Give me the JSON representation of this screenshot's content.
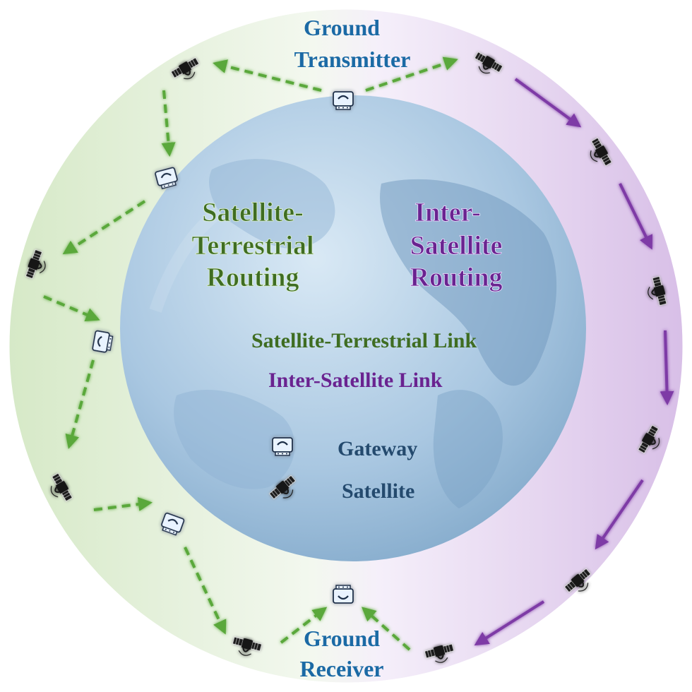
{
  "labels": {
    "ground_transmitter": [
      "Ground",
      "Transmitter"
    ],
    "ground_receiver": [
      "Ground",
      "Receiver"
    ],
    "satellite_terrestrial_routing": [
      "Satellite-",
      "Terrestrial",
      "Routing"
    ],
    "inter_satellite_routing": [
      "Inter-",
      "Satellite",
      "Routing"
    ]
  },
  "legend": {
    "satellite_terrestrial_link": "Satellite-Terrestrial Link",
    "inter_satellite_link": "Inter-Satellite Link",
    "gateway": "Gateway",
    "satellite": "Satellite"
  },
  "colors": {
    "green_text": "#3f6d22",
    "green_link": "#5aa83a",
    "green_glow": "#b7ef86",
    "purple_text": "#6a2390",
    "purple_link": "#7e3aa6",
    "purple_glow": "#d5a7ff",
    "blue_text": "#1b6aa5",
    "dark_blue_text": "#244a6e"
  },
  "icons": {
    "gateway": "gateway-icon",
    "satellite": "satellite-icon"
  }
}
